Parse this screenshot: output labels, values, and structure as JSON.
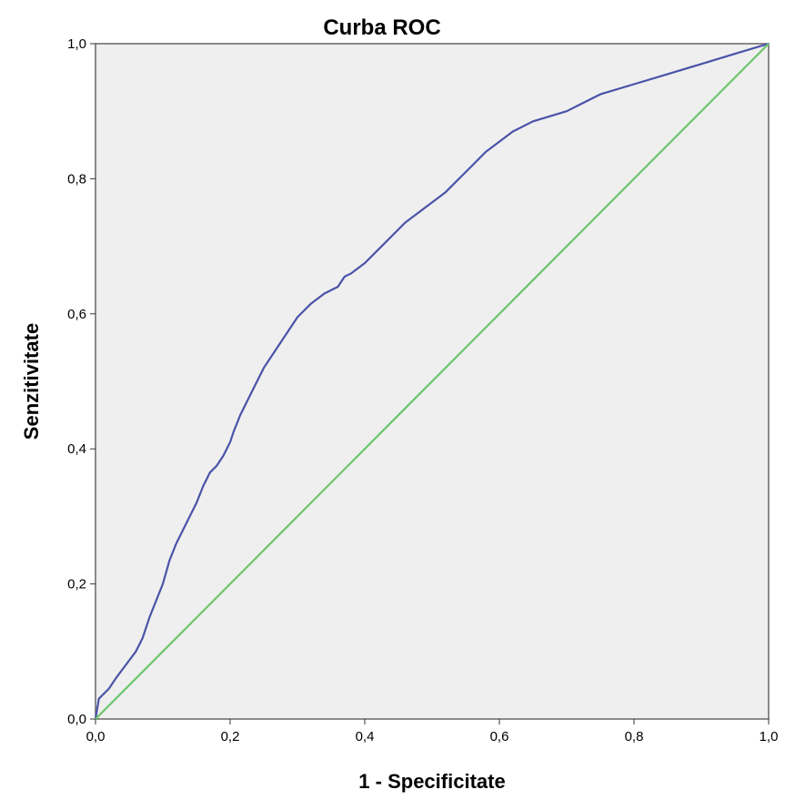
{
  "chart_data": {
    "type": "line",
    "title": "Curba ROC",
    "xlabel": "1 - Specificitate",
    "ylabel": "Senzitivitate",
    "xlim": [
      0,
      1
    ],
    "ylim": [
      0,
      1
    ],
    "x_ticks": [
      "0,0",
      "0,2",
      "0,4",
      "0,6",
      "0,8",
      "1,0"
    ],
    "y_ticks": [
      "0,0",
      "0,2",
      "0,4",
      "0,6",
      "0,8",
      "1,0"
    ],
    "grid": false,
    "plot_background": "#efefef",
    "series": [
      {
        "color": "#4a53a8",
        "x": [
          0.0,
          0.005,
          0.01,
          0.02,
          0.03,
          0.045,
          0.06,
          0.07,
          0.08,
          0.09,
          0.1,
          0.11,
          0.12,
          0.13,
          0.14,
          0.15,
          0.16,
          0.17,
          0.18,
          0.19,
          0.2,
          0.205,
          0.215,
          0.23,
          0.24,
          0.25,
          0.27,
          0.29,
          0.3,
          0.32,
          0.34,
          0.36,
          0.37,
          0.38,
          0.4,
          0.42,
          0.44,
          0.46,
          0.48,
          0.5,
          0.52,
          0.54,
          0.56,
          0.58,
          0.6,
          0.62,
          0.65,
          0.7,
          0.75,
          0.8,
          0.85,
          0.9,
          0.95,
          1.0
        ],
        "y": [
          0.0,
          0.03,
          0.035,
          0.045,
          0.06,
          0.08,
          0.1,
          0.12,
          0.15,
          0.175,
          0.2,
          0.235,
          0.26,
          0.28,
          0.3,
          0.32,
          0.345,
          0.365,
          0.375,
          0.39,
          0.41,
          0.425,
          0.45,
          0.48,
          0.5,
          0.52,
          0.55,
          0.58,
          0.595,
          0.615,
          0.63,
          0.64,
          0.655,
          0.66,
          0.675,
          0.695,
          0.715,
          0.735,
          0.75,
          0.765,
          0.78,
          0.8,
          0.82,
          0.84,
          0.855,
          0.87,
          0.885,
          0.9,
          0.925,
          0.94,
          0.955,
          0.97,
          0.985,
          1.0
        ]
      },
      {
        "color": "#6cc56c",
        "x": [
          0.0,
          1.0
        ],
        "y": [
          0.0,
          1.0
        ]
      }
    ]
  }
}
